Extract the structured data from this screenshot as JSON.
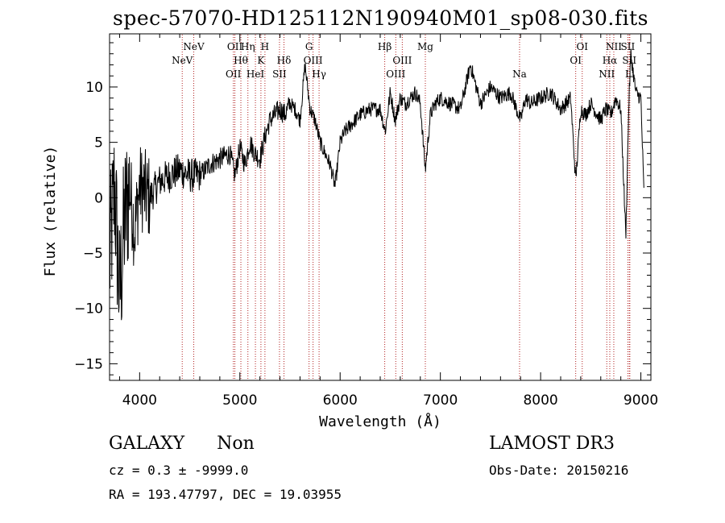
{
  "title": "spec-57070-HD125112N190940M01_sp08-030.fits",
  "info": {
    "object_class": "GALAXY",
    "subclass": "Non",
    "cz_line": "cz = 0.3 ± -9999.0",
    "radec_line": "RA = 193.47797, DEC =  19.03955",
    "survey": "LAMOST DR3",
    "obs_date_line": "Obs-Date: 20150216"
  },
  "chart_data": {
    "type": "line",
    "title": "spec-57070-HD125112N190940M01_sp08-030.fits",
    "xlabel": "Wavelength (Å)",
    "ylabel": "Flux (relative)",
    "xlim": [
      3700,
      9100
    ],
    "ylim": [
      -16.5,
      14.8
    ],
    "xticks": [
      4000,
      5000,
      6000,
      7000,
      8000,
      9000
    ],
    "yticks": [
      -15,
      -10,
      -5,
      0,
      5,
      10
    ],
    "line_color": "#000000",
    "marker_color": "#b22222",
    "x": [
      3700,
      3750,
      3800,
      3850,
      3900,
      3950,
      4000,
      4100,
      4200,
      4300,
      4400,
      4500,
      4600,
      4700,
      4800,
      4900,
      4950,
      5000,
      5050,
      5100,
      5150,
      5200,
      5250,
      5300,
      5350,
      5400,
      5450,
      5500,
      5550,
      5600,
      5650,
      5700,
      5750,
      5800,
      5850,
      5900,
      5950,
      6000,
      6050,
      6100,
      6200,
      6300,
      6400,
      6450,
      6500,
      6550,
      6600,
      6650,
      6700,
      6750,
      6800,
      6850,
      6900,
      6950,
      7000,
      7100,
      7200,
      7300,
      7400,
      7500,
      7600,
      7700,
      7800,
      7850,
      7900,
      8000,
      8100,
      8200,
      8300,
      8350,
      8400,
      8450,
      8500,
      8600,
      8650,
      8700,
      8750,
      8800,
      8850,
      8880,
      8900,
      8950,
      9000,
      9030
    ],
    "y": [
      -6,
      1,
      -9,
      -2,
      1,
      -3,
      1,
      0,
      1.5,
      2,
      2.5,
      2,
      2,
      3,
      3.5,
      4,
      2,
      4.5,
      3,
      5,
      4,
      3.5,
      5.5,
      7,
      7.5,
      8,
      7.5,
      8.5,
      8,
      7,
      12,
      8,
      7,
      5,
      4,
      3,
      1,
      5,
      6,
      6.5,
      7.5,
      8,
      8,
      6,
      9.5,
      7,
      9,
      8.5,
      9,
      9.5,
      8.5,
      2.5,
      7.5,
      8.5,
      9,
      8.5,
      8,
      12,
      8.5,
      10,
      9,
      9.5,
      7,
      9,
      8.5,
      9,
      9.5,
      8,
      9,
      1.5,
      8,
      7.5,
      8.5,
      7,
      8,
      7.5,
      9,
      8,
      -3.5,
      8.5,
      13,
      9.5,
      9,
      0.5
    ],
    "lines": [
      {
        "label": "NeV",
        "wl": 4425,
        "row": 1
      },
      {
        "label": "NeV",
        "wl": 4540,
        "row": 0
      },
      {
        "label": "OII",
        "wl": 4935,
        "row": 2
      },
      {
        "label": "OII",
        "wl": 4950,
        "row": 0
      },
      {
        "label": "Hθ",
        "wl": 5010,
        "row": 1
      },
      {
        "label": "Hη",
        "wl": 5080,
        "row": 0
      },
      {
        "label": "HeI",
        "wl": 5155,
        "row": 2
      },
      {
        "label": "K",
        "wl": 5210,
        "row": 1
      },
      {
        "label": "H",
        "wl": 5250,
        "row": 0
      },
      {
        "label": "SII",
        "wl": 5395,
        "row": 2
      },
      {
        "label": "Hδ",
        "wl": 5440,
        "row": 1
      },
      {
        "label": "G",
        "wl": 5690,
        "row": 0
      },
      {
        "label": "OIII",
        "wl": 5730,
        "row": 1
      },
      {
        "label": "Hγ",
        "wl": 5790,
        "row": 2
      },
      {
        "label": "Hβ",
        "wl": 6445,
        "row": 0
      },
      {
        "label": "OIII",
        "wl": 6555,
        "row": 2
      },
      {
        "label": "OIII",
        "wl": 6620,
        "row": 1
      },
      {
        "label": "Mg",
        "wl": 6850,
        "row": 0
      },
      {
        "label": "Na",
        "wl": 7790,
        "row": 2
      },
      {
        "label": "OI",
        "wl": 8350,
        "row": 1
      },
      {
        "label": "OI",
        "wl": 8415,
        "row": 0
      },
      {
        "label": "NII",
        "wl": 8660,
        "row": 2
      },
      {
        "label": "Hα",
        "wl": 8690,
        "row": 1
      },
      {
        "label": "NII",
        "wl": 8730,
        "row": 0
      },
      {
        "label": "SII",
        "wl": 8870,
        "row": 0
      },
      {
        "label": "SII",
        "wl": 8885,
        "row": 1
      },
      {
        "label": "Li",
        "wl": 8890,
        "row": 2
      }
    ]
  }
}
